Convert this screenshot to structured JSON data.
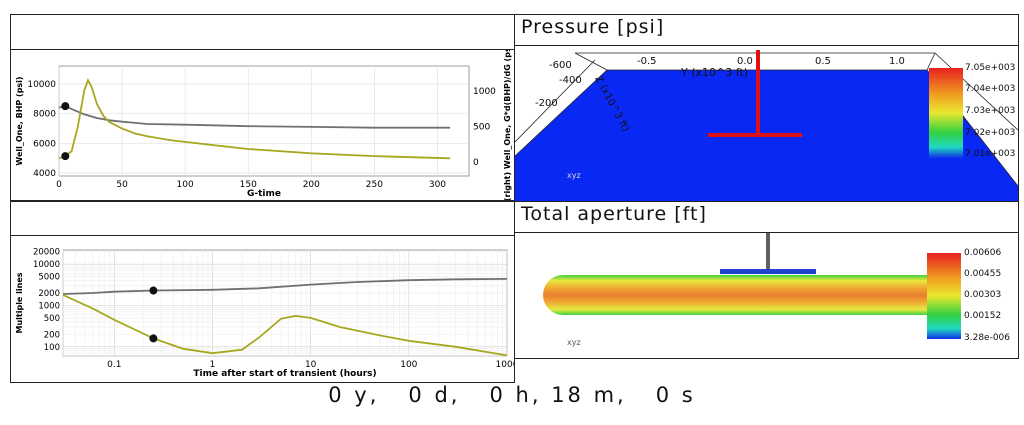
{
  "panels": {
    "pressure": {
      "title": "Pressure [psi]",
      "colorbar": [
        "7.05e+003",
        "7.04e+003",
        "7.03e+003",
        "7.02e+003",
        "7.01e+003"
      ],
      "y_ticks": [
        "-600",
        "-400",
        "-200"
      ],
      "x_ticks": [
        "-0.5",
        "0.0",
        "0.5",
        "1.0"
      ],
      "y_axis_label": "Y (x10^3 ft)",
      "z_axis_label": "Z (x10^3 ft)",
      "axes_triad": "xyz"
    },
    "aperture": {
      "title": "Total aperture [ft]",
      "colorbar": [
        "0.00606",
        "0.00455",
        "0.00303",
        "0.00152",
        "3.28e-006"
      ],
      "axes_triad": "xyz"
    }
  },
  "chart_data": [
    {
      "type": "line",
      "xlabel": "G-time",
      "ylabel": "Well_One, BHP (psi)",
      "ylabel_right": "(right) Well_One, G*d(BHP)/dG (psi)",
      "xlim": [
        0,
        325
      ],
      "ylim": [
        3800,
        11200
      ],
      "ylim_right": [
        -200,
        1350
      ],
      "x_ticks": [
        "0",
        "50",
        "100",
        "150",
        "200",
        "250",
        "300"
      ],
      "y_ticks": [
        "4000",
        "6000",
        "8000",
        "10000"
      ],
      "y_ticks_right": [
        "0",
        "500",
        "1000"
      ],
      "grid": true,
      "series": [
        {
          "axis": "left",
          "color": "#707070",
          "x": [
            0,
            5,
            10,
            20,
            30,
            40,
            50,
            70,
            100,
            150,
            200,
            250,
            310
          ],
          "y": [
            8400,
            8500,
            8300,
            7950,
            7700,
            7550,
            7450,
            7300,
            7250,
            7150,
            7100,
            7050,
            7050
          ]
        },
        {
          "axis": "right",
          "color": "#a8a820",
          "x": [
            0,
            5,
            10,
            15,
            20,
            23,
            26,
            30,
            35,
            40,
            50,
            60,
            70,
            80,
            90,
            100,
            120,
            150,
            200,
            250,
            310
          ],
          "y": [
            50,
            80,
            150,
            500,
            1000,
            1150,
            1050,
            820,
            650,
            560,
            470,
            400,
            360,
            330,
            300,
            280,
            240,
            180,
            120,
            80,
            50
          ]
        }
      ],
      "markers": [
        {
          "axis": "left",
          "x": 5,
          "y": 8500
        },
        {
          "axis": "right",
          "x": 5,
          "y": 80
        }
      ]
    },
    {
      "type": "line",
      "xlabel": "Time after start of transient (hours)",
      "ylabel": "Multiple lines",
      "xscale": "log",
      "yscale": "log",
      "xlim": [
        0.03,
        1000
      ],
      "ylim": [
        60,
        22000
      ],
      "x_ticks": [
        "0.1",
        "1",
        "10",
        "100",
        "1000"
      ],
      "y_ticks": [
        "100",
        "200",
        "500",
        "1000",
        "2000",
        "5000",
        "10000",
        "20000"
      ],
      "grid": true,
      "series": [
        {
          "color": "#707070",
          "x": [
            0.03,
            0.06,
            0.1,
            0.25,
            1,
            3,
            10,
            30,
            100,
            300,
            1000
          ],
          "y": [
            1900,
            2000,
            2150,
            2300,
            2400,
            2600,
            3200,
            3700,
            4100,
            4300,
            4400
          ]
        },
        {
          "color": "#a8a820",
          "x": [
            0.03,
            0.06,
            0.1,
            0.25,
            0.5,
            1,
            2,
            3,
            5,
            7,
            10,
            20,
            50,
            100,
            300,
            1000
          ],
          "y": [
            1800,
            850,
            450,
            160,
            90,
            70,
            85,
            170,
            480,
            560,
            500,
            300,
            190,
            140,
            100,
            62
          ]
        }
      ],
      "markers": [
        {
          "x": 0.25,
          "y": 2300
        },
        {
          "x": 0.25,
          "y": 160
        }
      ]
    }
  ],
  "status": {
    "elapsed_time": "0 y,   0 d,   0 h, 18 m,   0 s"
  }
}
